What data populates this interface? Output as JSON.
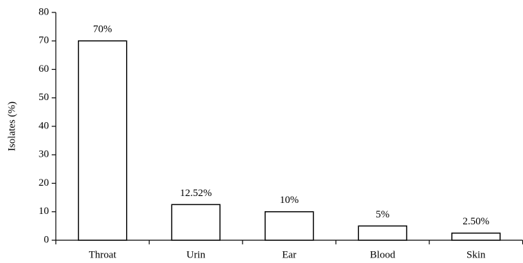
{
  "chart_data": {
    "type": "bar",
    "y_label": "Isolates (%)",
    "categories": [
      "Throat",
      "Urin",
      "Ear",
      "Blood",
      "Skin"
    ],
    "values": [
      70,
      12.52,
      10,
      5,
      2.5
    ],
    "value_labels": [
      "70%",
      "12.52%",
      "10%",
      "5%",
      "2.50%"
    ],
    "color": "#ffffff",
    "ylim": [
      0,
      80
    ],
    "yticks": [
      0,
      10,
      20,
      30,
      40,
      50,
      60,
      70,
      80
    ],
    "grid": false
  }
}
